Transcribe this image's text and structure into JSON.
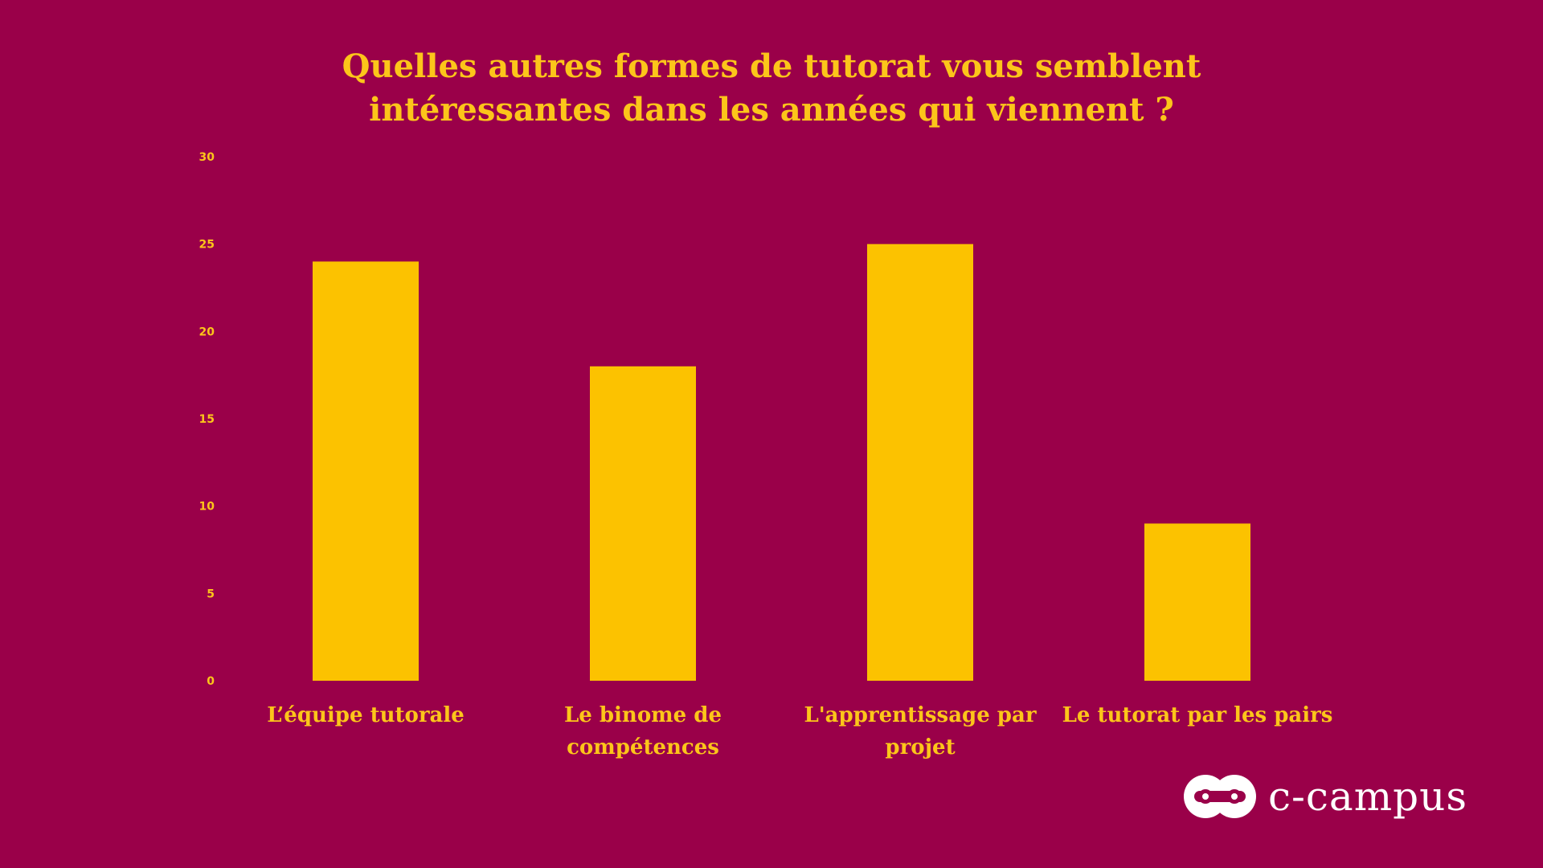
{
  "chart_data": {
    "type": "bar",
    "title_lines": [
      "Quelles autres formes de tutorat vous semblent",
      "intéressantes dans les années qui viennent ?"
    ],
    "categories": [
      [
        "L’équipe tutorale"
      ],
      [
        "Le binome de",
        "compétences"
      ],
      [
        "L'apprentissage par",
        "projet"
      ],
      [
        "Le tutorat par les pairs"
      ]
    ],
    "values": [
      24,
      18,
      25,
      9
    ],
    "ylim": [
      0,
      30
    ],
    "yticks": [
      0,
      5,
      10,
      15,
      20,
      25,
      30
    ],
    "grid": false,
    "legend": "none"
  },
  "colors": {
    "background": "#9a0049",
    "bar": "#fcc200",
    "text": "#fcc51a",
    "logo": "#ffffff"
  },
  "logo": {
    "icon": "c-campus-logo-icon",
    "text": "c-campus"
  }
}
